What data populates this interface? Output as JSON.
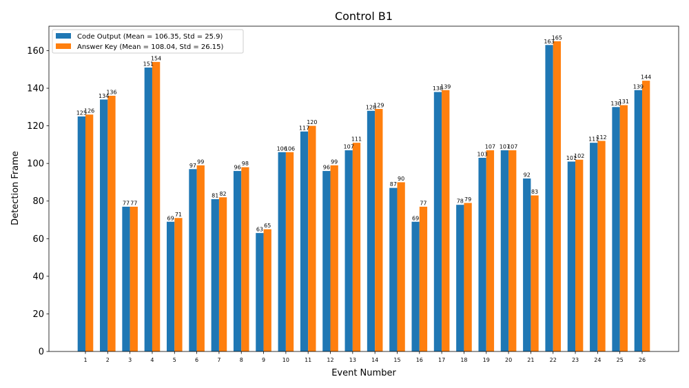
{
  "chart_data": {
    "type": "bar",
    "title": "Control B1",
    "xlabel": "Event Number",
    "ylabel": "Detection Frame",
    "ylim": [
      0,
      173
    ],
    "yticks": [
      0,
      20,
      40,
      60,
      80,
      100,
      120,
      140,
      160
    ],
    "grid": false,
    "legend_position": "top-left",
    "categories": [
      "1",
      "2",
      "3",
      "4",
      "5",
      "6",
      "7",
      "8",
      "9",
      "10",
      "11",
      "12",
      "13",
      "14",
      "15",
      "16",
      "17",
      "18",
      "19",
      "20",
      "21",
      "22",
      "23",
      "24",
      "25",
      "26"
    ],
    "series": [
      {
        "name": "Code Output (Mean = 106.35, Std = 25.9)",
        "color": "#1f77b4",
        "values": [
          125,
          134,
          77,
          151,
          69,
          97,
          81,
          96,
          63,
          106,
          117,
          96,
          107,
          128,
          87,
          69,
          138,
          78,
          103,
          107,
          92,
          163,
          101,
          111,
          130,
          139
        ]
      },
      {
        "name": "Answer Key (Mean = 108.04, Std = 26.15)",
        "color": "#ff7f0e",
        "values": [
          126,
          136,
          77,
          154,
          71,
          99,
          82,
          98,
          65,
          106,
          120,
          99,
          111,
          129,
          90,
          77,
          139,
          79,
          107,
          107,
          83,
          165,
          102,
          112,
          131,
          144
        ]
      }
    ]
  }
}
